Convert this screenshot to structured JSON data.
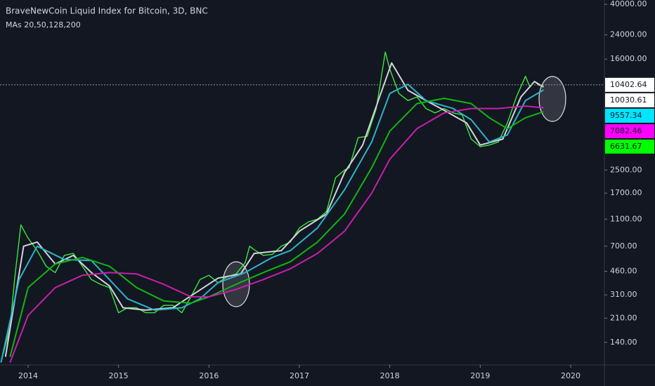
{
  "chart_data": {
    "type": "line",
    "title": "BraveNewCoin Liquid Index for Bitcoin, 3D, BNC",
    "subtitle": "MAs 20,50,128,200",
    "log_scale": true,
    "grid": false,
    "xlim": [
      2013.689,
      2020.373
    ],
    "xticks": [
      2014,
      2015,
      2016,
      2017,
      2018,
      2019,
      2020
    ],
    "ylim": [
      96,
      43000
    ],
    "yticks": [
      {
        "value": 40000,
        "label": "40000.00"
      },
      {
        "value": 24000,
        "label": "24000.00"
      },
      {
        "value": 16000,
        "label": "16000.00"
      },
      {
        "value": 2500,
        "label": "2500.00"
      },
      {
        "value": 1700,
        "label": "1700.00"
      },
      {
        "value": 1100,
        "label": "1100.00"
      },
      {
        "value": 700,
        "label": "700.00"
      },
      {
        "value": 460,
        "label": "460.00"
      },
      {
        "value": 310,
        "label": "310.00"
      },
      {
        "value": 210,
        "label": "210.00"
      },
      {
        "value": 140,
        "label": "140.00"
      }
    ],
    "series": [
      {
        "color": "#3ce83c",
        "badge_color": "#ffffff",
        "x": [
          2013.7,
          2013.8,
          2013.85,
          2013.92,
          2014.0,
          2014.1,
          2014.2,
          2014.3,
          2014.4,
          2014.5,
          2014.6,
          2014.7,
          2014.8,
          2014.9,
          2015.0,
          2015.1,
          2015.2,
          2015.3,
          2015.4,
          2015.5,
          2015.6,
          2015.7,
          2015.8,
          2015.9,
          2016.0,
          2016.1,
          2016.2,
          2016.3,
          2016.4,
          2016.45,
          2016.5,
          2016.6,
          2016.7,
          2016.8,
          2016.9,
          2017.0,
          2017.1,
          2017.2,
          2017.3,
          2017.4,
          2017.5,
          2017.55,
          2017.65,
          2017.75,
          2017.85,
          2017.95,
          2018.0,
          2018.1,
          2018.2,
          2018.3,
          2018.4,
          2018.5,
          2018.6,
          2018.7,
          2018.8,
          2018.9,
          2019.0,
          2019.1,
          2019.2,
          2019.3,
          2019.4,
          2019.5,
          2019.55,
          2019.6,
          2019.65,
          2019.7
        ],
        "values": [
          100,
          180,
          400,
          1000,
          800,
          650,
          500,
          450,
          600,
          620,
          500,
          400,
          370,
          350,
          230,
          250,
          250,
          230,
          230,
          260,
          260,
          230,
          300,
          400,
          430,
          380,
          420,
          440,
          530,
          700,
          660,
          600,
          610,
          700,
          750,
          950,
          1050,
          1100,
          1250,
          2200,
          2500,
          2600,
          4300,
          4400,
          7000,
          18000,
          13500,
          9000,
          8000,
          8500,
          7000,
          6500,
          7000,
          6500,
          6300,
          4200,
          3700,
          3800,
          4000,
          5500,
          8500,
          12000,
          10000,
          11000,
          10300,
          10402.64
        ]
      },
      {
        "color": "#d1d4dc",
        "badge_color": "#ffffff",
        "x": [
          2013.75,
          2013.95,
          2014.1,
          2014.3,
          2014.5,
          2014.7,
          2014.9,
          2015.05,
          2015.3,
          2015.6,
          2015.85,
          2016.1,
          2016.35,
          2016.5,
          2016.8,
          2017.0,
          2017.3,
          2017.5,
          2017.7,
          2017.9,
          2018.02,
          2018.2,
          2018.4,
          2018.6,
          2018.85,
          2019.0,
          2019.25,
          2019.45,
          2019.6,
          2019.7
        ],
        "values": [
          110,
          700,
          750,
          520,
          600,
          450,
          360,
          250,
          240,
          250,
          320,
          410,
          440,
          620,
          650,
          900,
          1200,
          2400,
          3800,
          9000,
          15000,
          9500,
          8000,
          6800,
          5500,
          3800,
          4200,
          8500,
          11000,
          10030.61
        ]
      },
      {
        "color": "#2bb5c8",
        "badge_color": "#00e5ff",
        "x": [
          2013.7,
          2013.9,
          2014.1,
          2014.4,
          2014.7,
          2014.9,
          2015.1,
          2015.4,
          2015.7,
          2015.9,
          2016.1,
          2016.4,
          2016.7,
          2016.9,
          2017.2,
          2017.5,
          2017.8,
          2018.0,
          2018.2,
          2018.4,
          2018.7,
          2018.9,
          2019.1,
          2019.3,
          2019.5,
          2019.7
        ],
        "values": [
          100,
          400,
          700,
          560,
          550,
          400,
          290,
          240,
          250,
          290,
          380,
          450,
          580,
          650,
          950,
          1800,
          4000,
          9000,
          10500,
          8000,
          7000,
          5800,
          4000,
          4500,
          8000,
          9557.34
        ]
      },
      {
        "color": "#12b512",
        "badge_color": "#00ff00",
        "x": [
          2013.8,
          2014.0,
          2014.3,
          2014.6,
          2014.9,
          2015.2,
          2015.5,
          2015.8,
          2016.0,
          2016.3,
          2016.6,
          2016.9,
          2017.2,
          2017.5,
          2017.8,
          2018.0,
          2018.3,
          2018.6,
          2018.9,
          2019.1,
          2019.3,
          2019.5,
          2019.7
        ],
        "values": [
          110,
          350,
          520,
          580,
          500,
          350,
          280,
          270,
          300,
          370,
          450,
          540,
          750,
          1200,
          2600,
          4800,
          7600,
          8300,
          7600,
          6000,
          5000,
          6000,
          6631.67
        ]
      },
      {
        "color": "#c81fa8",
        "badge_color": "#ff00ff",
        "x": [
          2013.8,
          2014.0,
          2014.3,
          2014.6,
          2014.9,
          2015.2,
          2015.5,
          2015.8,
          2016.0,
          2016.3,
          2016.6,
          2016.9,
          2017.2,
          2017.5,
          2017.8,
          2018.0,
          2018.3,
          2018.6,
          2018.9,
          2019.2,
          2019.5,
          2019.7
        ],
        "values": [
          100,
          220,
          350,
          430,
          450,
          440,
          370,
          300,
          300,
          340,
          400,
          480,
          620,
          900,
          1700,
          3000,
          5000,
          6500,
          7000,
          7000,
          7300,
          7082.46
        ]
      }
    ]
  }
}
